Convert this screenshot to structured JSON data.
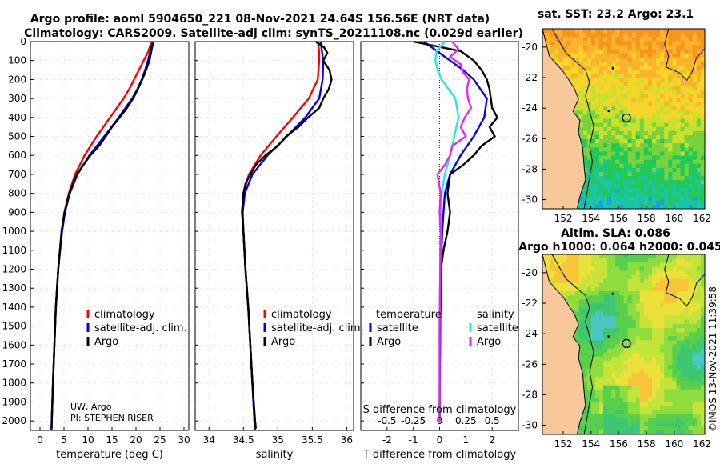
{
  "header": {
    "line1": "Argo profile: aoml 5904650_221 08-Nov-2021 24.64S 156.56E (NRT data)",
    "line2": "Climatology: CARS2009. Satellite-adj clim: synTS_20211108.nc (0.029d earlier)"
  },
  "credit": {
    "line1": "UW, Argo",
    "line2": "PI: STEPHEN RISER"
  },
  "timestamp": "©IMOS 13-Nov-2021 11:39:58",
  "colors": {
    "climatology": "#ff0000",
    "satellite": "#0000ee",
    "argo": "#000000",
    "sat_t": "#22e8e8",
    "sat_s": "#ee22ee",
    "land": "#f8c79a"
  },
  "depth_axis": {
    "min": 0,
    "max": 2050,
    "ticks": [
      "0",
      "100",
      "200",
      "300",
      "400",
      "500",
      "600",
      "700",
      "800",
      "900",
      "1000",
      "1100",
      "1200",
      "1300",
      "1400",
      "1500",
      "1600",
      "1700",
      "1800",
      "1900",
      "2000"
    ]
  },
  "chart_data": [
    {
      "type": "line",
      "id": "temperature",
      "xlabel": "temperature (deg C)",
      "xlim": [
        -2,
        31
      ],
      "xticks": [
        "0",
        "5",
        "10",
        "15",
        "20",
        "25",
        "30"
      ],
      "ylim": [
        2050,
        0
      ],
      "legend": [
        "climatology",
        "satellite-adj. clim.",
        "Argo"
      ],
      "series": [
        {
          "name": "climatology",
          "depth": [
            0,
            50,
            100,
            150,
            200,
            250,
            300,
            350,
            400,
            450,
            500,
            600,
            700,
            800,
            900,
            1000,
            1200,
            1400,
            1600,
            1800,
            2000,
            2050
          ],
          "values": [
            23.2,
            22.6,
            21.6,
            20.6,
            19.6,
            18.6,
            17.4,
            16.0,
            14.6,
            13.2,
            11.8,
            9.3,
            7.3,
            6.0,
            5.1,
            4.5,
            3.8,
            3.3,
            3.0,
            2.7,
            2.45,
            2.4
          ]
        },
        {
          "name": "satellite-adj. clim.",
          "depth": [
            0,
            50,
            100,
            150,
            200,
            250,
            300,
            350,
            400,
            450,
            500,
            600,
            700,
            800,
            900,
            1000,
            1200,
            1400,
            1600,
            1800,
            2000,
            2050
          ],
          "values": [
            23.5,
            23.0,
            22.5,
            21.9,
            21.2,
            20.3,
            19.2,
            17.8,
            16.4,
            14.9,
            13.4,
            10.3,
            7.8,
            6.2,
            5.2,
            4.6,
            3.8,
            3.3,
            3.0,
            2.7,
            2.45,
            2.4
          ]
        },
        {
          "name": "Argo",
          "depth": [
            0,
            50,
            100,
            150,
            200,
            250,
            300,
            350,
            400,
            450,
            500,
            550,
            600,
            700,
            800,
            900,
            1000,
            1200,
            1400,
            1600,
            1800,
            2000,
            2040
          ],
          "values": [
            23.6,
            23.2,
            22.8,
            22.1,
            21.3,
            20.4,
            19.4,
            18.1,
            16.6,
            15.0,
            13.7,
            12.3,
            10.5,
            7.6,
            6.1,
            5.1,
            4.5,
            3.8,
            3.3,
            3.0,
            2.7,
            2.45,
            2.4
          ]
        }
      ]
    },
    {
      "type": "line",
      "id": "salinity",
      "xlabel": "salinity",
      "xlim": [
        33.8,
        36.1
      ],
      "xticks": [
        "34",
        "34.5",
        "35",
        "35.5",
        "36"
      ],
      "ylim": [
        2050,
        0
      ],
      "legend": [
        "climatology",
        "satellite-adj. clim.",
        "Argo"
      ],
      "series": [
        {
          "name": "climatology",
          "depth": [
            0,
            50,
            100,
            200,
            300,
            400,
            500,
            600,
            700,
            800,
            900,
            1000,
            1200,
            1400,
            1600,
            1800,
            2000,
            2050
          ],
          "values": [
            35.58,
            35.6,
            35.6,
            35.58,
            35.45,
            35.22,
            34.98,
            34.75,
            34.58,
            34.5,
            34.48,
            34.5,
            34.53,
            34.57,
            34.6,
            34.63,
            34.66,
            34.67
          ]
        },
        {
          "name": "satellite-adj. clim.",
          "depth": [
            0,
            50,
            100,
            200,
            300,
            400,
            500,
            600,
            700,
            800,
            900,
            1000,
            1200,
            1400,
            1600,
            1800,
            2000,
            2050
          ],
          "values": [
            35.62,
            35.64,
            35.66,
            35.65,
            35.6,
            35.4,
            35.13,
            34.85,
            34.63,
            34.52,
            34.49,
            34.5,
            34.53,
            34.57,
            34.6,
            34.63,
            34.66,
            34.67
          ]
        },
        {
          "name": "Argo",
          "depth": [
            0,
            30,
            60,
            100,
            150,
            200,
            250,
            300,
            350,
            400,
            450,
            500,
            550,
            600,
            650,
            700,
            750,
            800,
            900,
            1000,
            1200,
            1400,
            1600,
            1800,
            2000,
            2040
          ],
          "values": [
            35.55,
            35.67,
            35.72,
            35.66,
            35.75,
            35.78,
            35.74,
            35.66,
            35.6,
            35.44,
            35.3,
            35.12,
            35.0,
            34.82,
            34.68,
            34.6,
            34.53,
            34.5,
            34.48,
            34.5,
            34.53,
            34.57,
            34.6,
            34.63,
            34.67,
            34.68
          ]
        }
      ]
    },
    {
      "type": "line",
      "id": "difference",
      "xlabel": "T difference from climatology",
      "xlabel2": "S difference from climatology",
      "xlim": [
        -3,
        3
      ],
      "xticks": [
        "-2",
        "-1",
        "0",
        "1",
        "2"
      ],
      "xticks2": [
        "-0.5",
        "-0.25",
        "0",
        "0.25",
        "0.5"
      ],
      "ylim": [
        2050,
        0
      ],
      "legend_groups": [
        {
          "title": "temperature",
          "items": [
            "satellite",
            "Argo"
          ]
        },
        {
          "title": "salinity",
          "items": [
            "satellite",
            "Argo"
          ]
        }
      ],
      "series": [
        {
          "name": "T satellite",
          "depth": [
            0,
            50,
            100,
            150,
            200,
            300,
            400,
            500,
            600,
            700,
            800,
            900,
            1000,
            1200,
            1500,
            2000
          ],
          "values": [
            -0.6,
            -0.1,
            0.4,
            0.9,
            1.3,
            1.8,
            1.7,
            1.3,
            0.8,
            0.4,
            0.2,
            0.15,
            0.1,
            0.05,
            0.02,
            0.0
          ]
        },
        {
          "name": "T Argo",
          "depth": [
            0,
            50,
            100,
            150,
            200,
            250,
            300,
            350,
            400,
            450,
            500,
            550,
            600,
            650,
            700,
            800,
            900,
            1000,
            1100,
            1200,
            1500,
            2000
          ],
          "values": [
            -1.0,
            0.8,
            1.3,
            1.6,
            1.8,
            1.9,
            1.95,
            2.0,
            2.2,
            1.9,
            2.1,
            1.6,
            1.3,
            0.9,
            0.4,
            0.3,
            0.4,
            0.3,
            0.15,
            0.05,
            0.02,
            0.0
          ]
        },
        {
          "name": "S satellite",
          "depth": [
            0,
            50,
            100,
            150,
            200,
            300,
            400,
            500,
            600,
            700,
            800,
            1000,
            1500,
            2000
          ],
          "values": [
            0.05,
            -0.03,
            -0.04,
            -0.02,
            0.02,
            0.15,
            0.18,
            0.14,
            0.1,
            0.05,
            0.02,
            0.01,
            0.0,
            0.0
          ]
        },
        {
          "name": "S Argo",
          "depth": [
            0,
            40,
            80,
            120,
            160,
            200,
            250,
            300,
            350,
            400,
            450,
            500,
            550,
            600,
            650,
            700,
            800,
            900,
            1000,
            1500,
            2000
          ],
          "values": [
            0.12,
            0.18,
            0.1,
            0.2,
            0.22,
            0.28,
            0.26,
            0.27,
            0.3,
            0.24,
            0.2,
            0.25,
            0.12,
            0.1,
            0.05,
            -0.02,
            0.01,
            0.0,
            0.01,
            0.0,
            0.0
          ]
        }
      ]
    },
    {
      "type": "heatmap",
      "id": "sst-map",
      "title": "sat. SST: 23.2 Argo: 23.1",
      "xticks": [
        "152",
        "154",
        "156",
        "158",
        "160",
        "162"
      ],
      "yticks": [
        "-20",
        "-22",
        "-24",
        "-26",
        "-28",
        "-30"
      ],
      "xlim": [
        150.5,
        162.2
      ],
      "ylim": [
        -30.6,
        -18.8
      ],
      "float_position": {
        "lon": 156.56,
        "lat": -24.64
      }
    },
    {
      "type": "heatmap",
      "id": "sla-map",
      "title": "Altim. SLA: 0.086",
      "subtitle": "Argo h1000: 0.064 h2000: 0.045",
      "xticks": [
        "152",
        "154",
        "156",
        "158",
        "160",
        "162"
      ],
      "yticks": [
        "-20",
        "-22",
        "-24",
        "-26",
        "-28",
        "-30"
      ],
      "xlim": [
        150.5,
        162.2
      ],
      "ylim": [
        -30.6,
        -18.8
      ],
      "float_position": {
        "lon": 156.56,
        "lat": -24.64
      }
    }
  ]
}
